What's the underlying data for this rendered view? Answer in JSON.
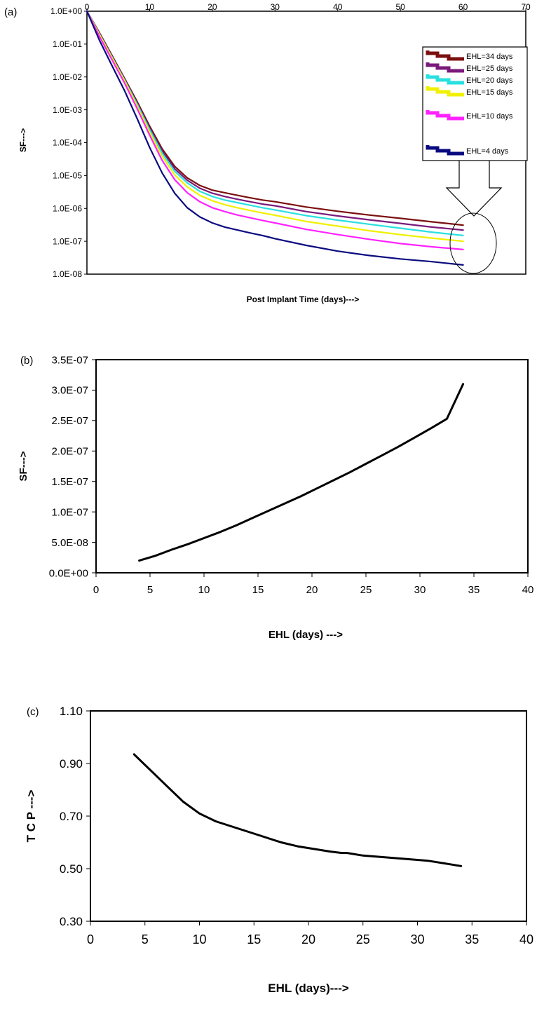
{
  "chart_data": [
    {
      "panel_label": "(a)",
      "type": "line",
      "xlabel": "Post Implant Time (days)--->",
      "ylabel": "SF--->",
      "x_ticks": [
        "0",
        "10",
        "20",
        "30",
        "40",
        "50",
        "60",
        "70"
      ],
      "y_ticks": [
        "1.0E+00",
        "1.0E-01",
        "1.0E-02",
        "1.0E-03",
        "1.0E-04",
        "1.0E-05",
        "1.0E-06",
        "1.0E-07",
        "1.0E-08"
      ],
      "xlim": [
        0,
        70
      ],
      "ylim": [
        1e-08,
        1
      ],
      "y_scale": "log",
      "x_axis_position": "top",
      "legend_position": "top-right",
      "x": [
        0,
        2,
        4,
        6,
        8,
        10,
        12,
        14,
        16,
        18,
        20,
        22,
        24,
        26,
        28,
        30,
        35,
        40,
        45,
        50,
        55,
        60
      ],
      "series": [
        {
          "name": "EHL=34 days",
          "color": "#7b0f0f",
          "values": [
            1,
            0.22,
            0.045,
            0.009,
            0.0018,
            0.00032,
            6.5e-05,
            1.9e-05,
            8.5e-06,
            5e-06,
            3.6e-06,
            3e-06,
            2.5e-06,
            2.1e-06,
            1.8e-06,
            1.6e-06,
            1.1e-06,
            8.2e-07,
            6.3e-07,
            5e-07,
            3.9e-07,
            3.1e-07
          ]
        },
        {
          "name": "EHL=25 days",
          "color": "#7a1a7a",
          "values": [
            1,
            0.21,
            0.042,
            0.0085,
            0.0016,
            0.00028,
            5.6e-05,
            1.6e-05,
            7.2e-06,
            4.1e-06,
            2.9e-06,
            2.3e-06,
            1.9e-06,
            1.6e-06,
            1.35e-06,
            1.2e-06,
            8e-07,
            5.9e-07,
            4.5e-07,
            3.5e-07,
            2.7e-07,
            2.2e-07
          ]
        },
        {
          "name": "EHL=20 days",
          "color": "#29e0e0",
          "values": [
            1,
            0.2,
            0.04,
            0.008,
            0.0015,
            0.00025,
            4.8e-05,
            1.35e-05,
            6e-06,
            3.3e-06,
            2.3e-06,
            1.8e-06,
            1.5e-06,
            1.25e-06,
            1.05e-06,
            9e-07,
            6e-07,
            4.4e-07,
            3.3e-07,
            2.5e-07,
            1.9e-07,
            1.5e-07
          ]
        },
        {
          "name": "EHL=15 days",
          "color": "#f0f000",
          "values": [
            1,
            0.19,
            0.038,
            0.0075,
            0.0013,
            0.00021,
            3.9e-05,
            1.05e-05,
            4.5e-06,
            2.5e-06,
            1.7e-06,
            1.3e-06,
            1.05e-06,
            8.7e-07,
            7.3e-07,
            6.2e-07,
            4e-07,
            2.9e-07,
            2.1e-07,
            1.6e-07,
            1.25e-07,
            1e-07
          ]
        },
        {
          "name": "EHL=10 days",
          "color": "#ff22ff",
          "values": [
            1,
            0.17,
            0.033,
            0.0065,
            0.0011,
            0.00017,
            2.9e-05,
            7.5e-06,
            3e-06,
            1.6e-06,
            1.05e-06,
            8e-07,
            6.3e-07,
            5.2e-07,
            4.3e-07,
            3.6e-07,
            2.3e-07,
            1.6e-07,
            1.15e-07,
            8.5e-08,
            6.8e-08,
            5.6e-08
          ]
        },
        {
          "name": "EHL=4 days",
          "color": "#0a0a80",
          "values": [
            1,
            0.13,
            0.022,
            0.0038,
            0.00055,
            7.2e-05,
            1.2e-05,
            2.9e-06,
            1.05e-06,
            5.5e-07,
            3.6e-07,
            2.7e-07,
            2.2e-07,
            1.8e-07,
            1.5e-07,
            1.2e-07,
            7.5e-08,
            5e-08,
            3.7e-08,
            2.9e-08,
            2.4e-08,
            1.9e-08
          ]
        }
      ]
    },
    {
      "panel_label": "(b)",
      "type": "line",
      "xlabel": "EHL (days) --->",
      "ylabel": "SF--->",
      "x_ticks": [
        "0",
        "5",
        "10",
        "15",
        "20",
        "25",
        "30",
        "35",
        "40"
      ],
      "y_ticks": [
        "0.0E+00",
        "5.0E-08",
        "1.0E-07",
        "1.5E-07",
        "2.0E-07",
        "2.5E-07",
        "3.0E-07",
        "3.5E-07"
      ],
      "xlim": [
        0,
        40
      ],
      "ylim": [
        0,
        3.5e-07
      ],
      "x": [
        4,
        5.5,
        7,
        8.5,
        10,
        11.5,
        13,
        14.5,
        16,
        17.5,
        19,
        20.5,
        22,
        23.5,
        25,
        26.5,
        28,
        29.5,
        31,
        32.5,
        34
      ],
      "series": [
        {
          "name": "",
          "color": "#000000",
          "values": [
            2e-08,
            2.8e-08,
            3.8e-08,
            4.7e-08,
            5.7e-08,
            6.7e-08,
            7.8e-08,
            9e-08,
            1.02e-07,
            1.14e-07,
            1.26e-07,
            1.39e-07,
            1.52e-07,
            1.65e-07,
            1.79e-07,
            1.93e-07,
            2.07e-07,
            2.22e-07,
            2.37e-07,
            2.53e-07,
            3.1e-07
          ]
        }
      ]
    },
    {
      "panel_label": "(c)",
      "type": "line",
      "xlabel": "EHL (days)--->",
      "ylabel": "T C P --->",
      "x_ticks": [
        "0",
        "5",
        "10",
        "15",
        "20",
        "25",
        "30",
        "35",
        "40"
      ],
      "y_ticks": [
        "0.30",
        "0.50",
        "0.70",
        "0.90",
        "1.10"
      ],
      "xlim": [
        0,
        40
      ],
      "ylim": [
        0.3,
        1.1
      ],
      "x": [
        4,
        5.5,
        7,
        8.5,
        10,
        11.5,
        13,
        14.5,
        16,
        17.5,
        19,
        20.5,
        22,
        23,
        23.5,
        25,
        26.5,
        28,
        29.5,
        31,
        32.5,
        34
      ],
      "series": [
        {
          "name": "",
          "color": "#000000",
          "values": [
            0.935,
            0.875,
            0.815,
            0.755,
            0.71,
            0.68,
            0.66,
            0.64,
            0.62,
            0.6,
            0.585,
            0.575,
            0.565,
            0.56,
            0.56,
            0.55,
            0.545,
            0.54,
            0.535,
            0.53,
            0.52,
            0.51
          ]
        }
      ]
    }
  ]
}
